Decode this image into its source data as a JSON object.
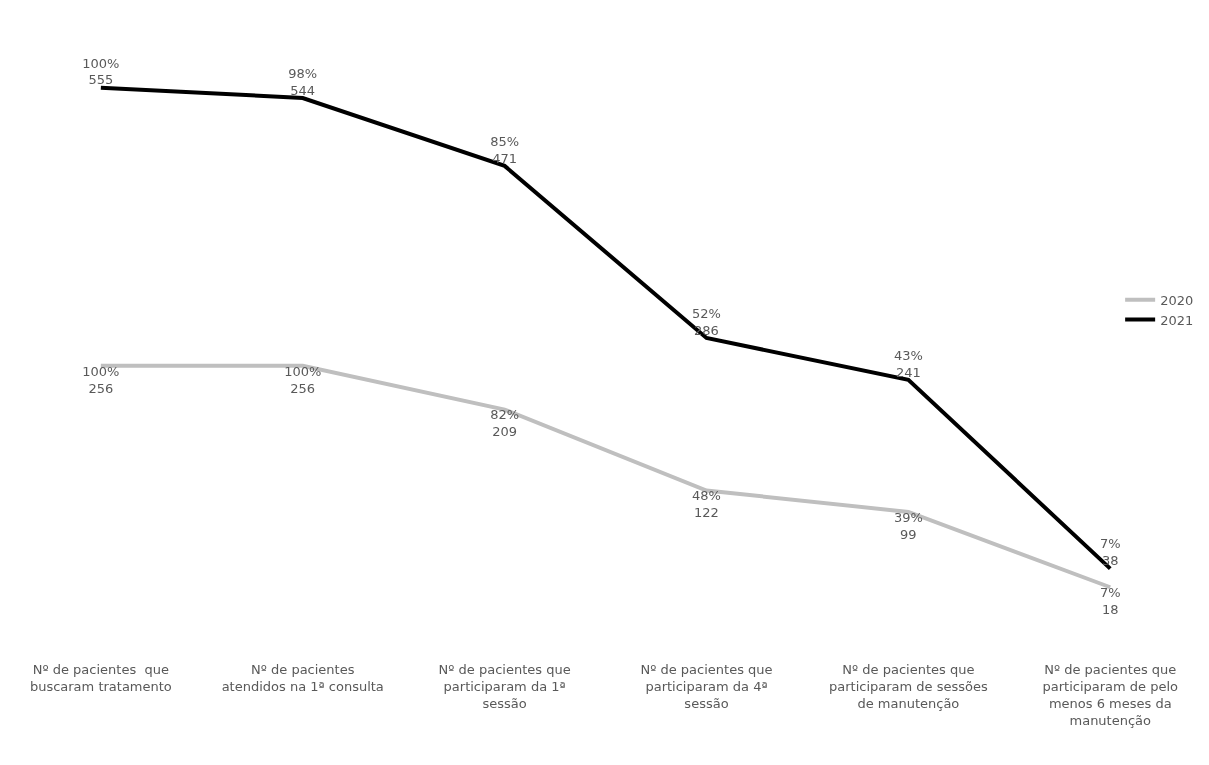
{
  "chart_data": {
    "type": "line",
    "categories": [
      "Nº de pacientes  que buscaram tratamento",
      "Nº de pacientes atendidos na 1ª consulta",
      "Nº de pacientes que participaram da 1ª sessão",
      "Nº de pacientes que participaram da 4ª sessão",
      "Nº de pacientes que participaram de sessões de manutenção",
      "Nº de pacientes que participaram de pelo menos 6 meses da manutenção"
    ],
    "series": [
      {
        "name": "2020",
        "color": "#bfbfbf",
        "values": [
          256,
          256,
          209,
          122,
          99,
          18
        ],
        "value_labels": [
          "100%\n256",
          "100%\n256",
          "82%\n209",
          "48%\n122",
          "39%\n99",
          "7%\n18"
        ]
      },
      {
        "name": "2021",
        "color": "#000000",
        "values": [
          555,
          544,
          471,
          286,
          241,
          38
        ],
        "value_labels": [
          "100%\n555",
          "98%\n544",
          "85%\n471",
          "52%\n286",
          "43%\n241",
          "7%\n38"
        ]
      }
    ],
    "legend": "right",
    "marker": "none",
    "line_style": "solid"
  }
}
